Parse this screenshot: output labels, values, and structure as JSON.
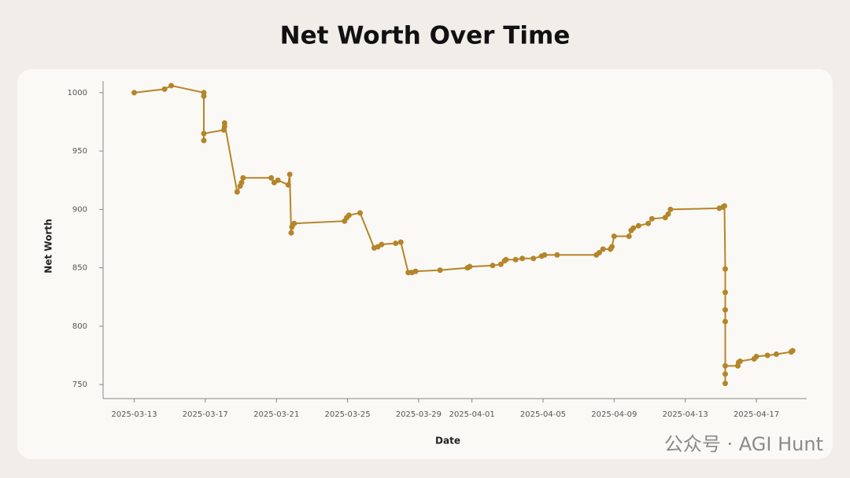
{
  "chart_data": {
    "type": "line",
    "title": "Net Worth Over Time",
    "x_label": "Date",
    "y_label": "Net Worth",
    "color": "#b5852a",
    "x": [
      "2025-03-13T00:00",
      "2025-03-14T17:00",
      "2025-03-15T02:00",
      "2025-03-16T22:00",
      "2025-03-16T22:00",
      "2025-03-16T22:00",
      "2025-03-16T22:00",
      "2025-03-18T01:00",
      "2025-03-18T02:00",
      "2025-03-18T02:00",
      "2025-03-18T19:00",
      "2025-03-18T23:00",
      "2025-03-19T01:00",
      "2025-03-19T03:00",
      "2025-03-20T17:00",
      "2025-03-20T21:00",
      "2025-03-21T02:00",
      "2025-03-21T16:00",
      "2025-03-21T18:00",
      "2025-03-21T20:00",
      "2025-03-21T21:00",
      "2025-03-22T00:00",
      "2025-03-24T20:00",
      "2025-03-24T23:00",
      "2025-03-25T02:00",
      "2025-03-25T17:00",
      "2025-03-26T12:00",
      "2025-03-26T17:00",
      "2025-03-26T22:00",
      "2025-03-27T17:00",
      "2025-03-28T00:00",
      "2025-03-28T10:00",
      "2025-03-28T15:00",
      "2025-03-28T20:00",
      "2025-03-30T05:00",
      "2025-03-31T18:00",
      "2025-03-31T21:00",
      "2025-04-02T04:00",
      "2025-04-02T15:00",
      "2025-04-02T20:00",
      "2025-04-02T22:00",
      "2025-04-03T11:00",
      "2025-04-03T20:00",
      "2025-04-04T11:00",
      "2025-04-04T22:00",
      "2025-04-05T02:00",
      "2025-04-05T19:00",
      "2025-04-08T00:00",
      "2025-04-08T04:00",
      "2025-04-08T09:00",
      "2025-04-08T19:00",
      "2025-04-08T21:00",
      "2025-04-09T00:00",
      "2025-04-09T20:00",
      "2025-04-09T23:00",
      "2025-04-10T02:00",
      "2025-04-10T09:00",
      "2025-04-10T22:00",
      "2025-04-11T03:00",
      "2025-04-11T21:00",
      "2025-04-12T01:00",
      "2025-04-12T04:00",
      "2025-04-14T22:00",
      "2025-04-15T03:00",
      "2025-04-15T05:00",
      "2025-04-15T06:00",
      "2025-04-15T06:00",
      "2025-04-15T06:00",
      "2025-04-15T06:00",
      "2025-04-15T06:00",
      "2025-04-15T06:00",
      "2025-04-15T06:00",
      "2025-04-15T23:00",
      "2025-04-16T00:00",
      "2025-04-16T02:00",
      "2025-04-16T21:00",
      "2025-04-17T00:00",
      "2025-04-17T15:00",
      "2025-04-18T03:00",
      "2025-04-18T23:00",
      "2025-04-19T01:00"
    ],
    "values": [
      1000,
      1003,
      1006,
      1000,
      997,
      959,
      965,
      968,
      971,
      974,
      915,
      920,
      923,
      927,
      927,
      923,
      925,
      921,
      930,
      880,
      885,
      888,
      890,
      893,
      895,
      897,
      867,
      868,
      870,
      871,
      872,
      846,
      846,
      847,
      848,
      850,
      851,
      852,
      853,
      856,
      857,
      857,
      858,
      858,
      860,
      861,
      861,
      861,
      863,
      866,
      866,
      868,
      877,
      877,
      882,
      884,
      886,
      888,
      892,
      893,
      896,
      900,
      901,
      902,
      903,
      849,
      829,
      814,
      804,
      759,
      751,
      766,
      766,
      769,
      770,
      772,
      774,
      775,
      776,
      778,
      779
    ],
    "xlim": [
      "2025-03-11T06:00",
      "2025-04-19T20:00"
    ],
    "xticks": [
      "2025-03-13",
      "2025-03-17",
      "2025-03-21",
      "2025-03-25",
      "2025-03-29",
      "2025-04-01",
      "2025-04-05",
      "2025-04-09",
      "2025-04-13",
      "2025-04-17"
    ],
    "ylim": [
      738,
      1010
    ],
    "yticks": [
      750,
      800,
      850,
      900,
      950,
      1000
    ],
    "grid": false
  },
  "watermark": "公众号 · AGI Hunt"
}
